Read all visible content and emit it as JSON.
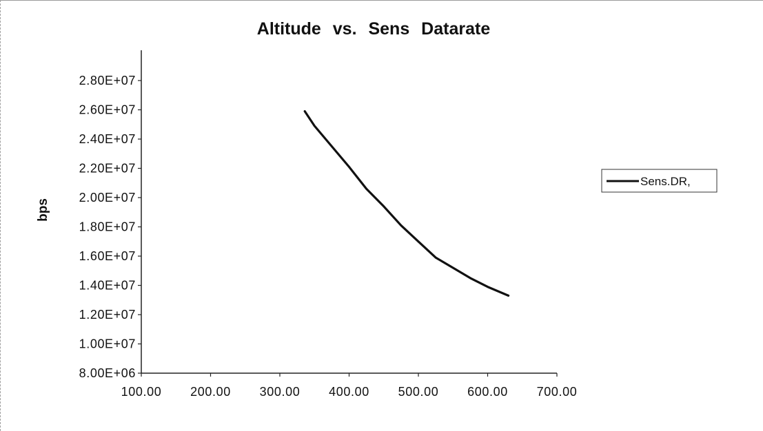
{
  "chart_data": {
    "type": "line",
    "title": "Altitude vs. Sens Datarate",
    "xlabel": "",
    "ylabel": "bps",
    "xlim": [
      100,
      700
    ],
    "ylim": [
      8000000,
      28000000
    ],
    "x_ticks": [
      "100.00",
      "200.00",
      "300.00",
      "400.00",
      "500.00",
      "600.00",
      "700.00"
    ],
    "y_ticks": [
      "8.00E+06",
      "1.00E+07",
      "1.20E+07",
      "1.40E+07",
      "1.60E+07",
      "1.80E+07",
      "2.00E+07",
      "2.20E+07",
      "2.40E+07",
      "2.60E+07",
      "2.80E+07"
    ],
    "grid": false,
    "legend_position": "right",
    "series": [
      {
        "name": "Sens.DR,",
        "color": "#111111",
        "x": [
          336,
          350,
          375,
          400,
          425,
          450,
          475,
          500,
          525,
          550,
          575,
          600,
          630
        ],
        "y": [
          25900000,
          24900000,
          23500000,
          22100000,
          20600000,
          19400000,
          18100000,
          17000000,
          15900000,
          15200000,
          14500000,
          13900000,
          13300000
        ]
      }
    ]
  }
}
